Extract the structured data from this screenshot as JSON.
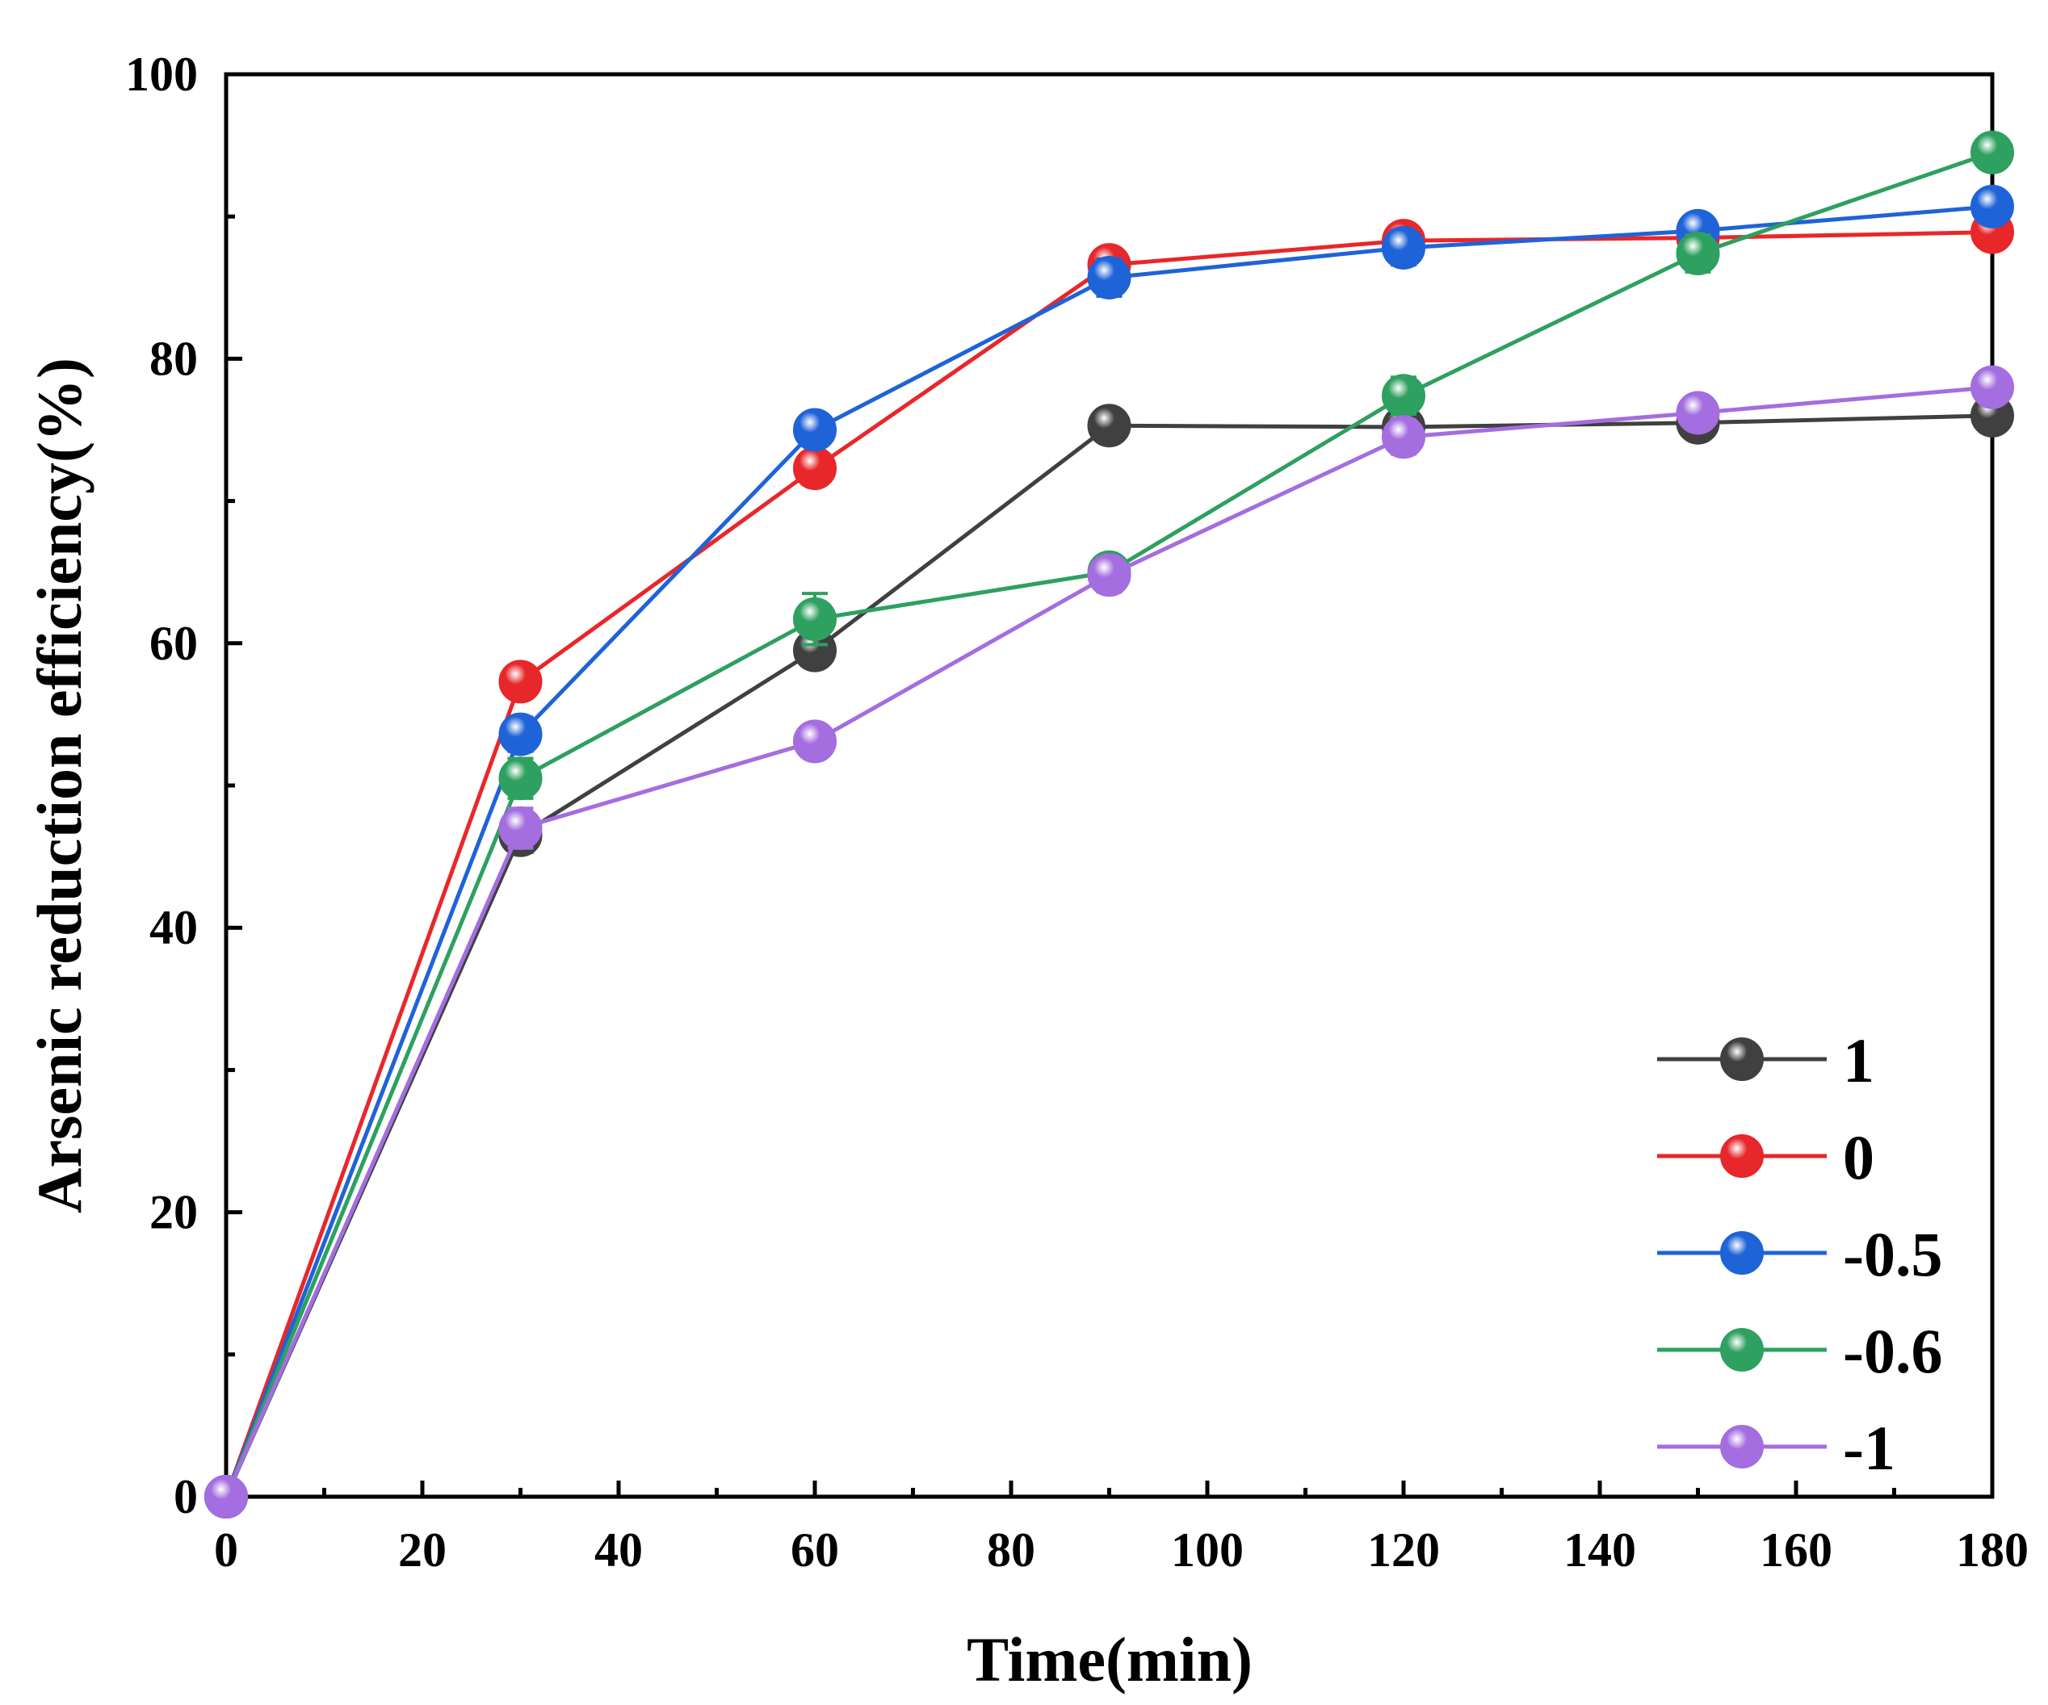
{
  "chart_data": {
    "type": "line",
    "title": "",
    "xlabel": "Time(min)",
    "ylabel": "Arsenic reduction efficiency(%)",
    "xlim": [
      0,
      180
    ],
    "ylim": [
      0,
      100
    ],
    "xticks": [
      0,
      20,
      40,
      60,
      80,
      100,
      120,
      140,
      160,
      180
    ],
    "yticks": [
      0,
      20,
      40,
      60,
      80,
      100
    ],
    "grid": false,
    "legend_position": "bottom-right",
    "x": [
      0,
      30,
      60,
      90,
      120,
      150,
      180
    ],
    "series": [
      {
        "name": "1",
        "color": "#404040",
        "values": [
          0,
          46.5,
          59.5,
          75.3,
          75.2,
          75.5,
          76.0
        ],
        "errors": [
          0,
          1.2,
          1.0,
          0.6,
          0.8,
          0.7,
          0.6
        ]
      },
      {
        "name": "0",
        "color": "#e8272a",
        "values": [
          0,
          57.3,
          72.3,
          86.6,
          88.3,
          88.5,
          88.9
        ],
        "errors": [
          0,
          1.0,
          1.0,
          0.8,
          0.8,
          0.9,
          0.6
        ]
      },
      {
        "name": "-0.5",
        "color": "#1f63d8",
        "values": [
          0,
          53.6,
          75.0,
          85.7,
          87.8,
          89.0,
          90.7
        ],
        "errors": [
          0,
          1.2,
          0.8,
          1.3,
          1.2,
          0.8,
          0.6
        ]
      },
      {
        "name": "-0.6",
        "color": "#2ea060",
        "values": [
          0,
          50.5,
          61.7,
          65.0,
          77.4,
          87.4,
          94.5
        ],
        "errors": [
          0,
          1.4,
          1.8,
          1.0,
          1.3,
          1.3,
          0.8
        ]
      },
      {
        "name": "-1",
        "color": "#a46de0",
        "values": [
          0,
          47.0,
          53.1,
          64.8,
          74.5,
          76.2,
          78.0
        ],
        "errors": [
          0,
          1.4,
          1.0,
          1.2,
          1.2,
          0.8,
          0.6
        ]
      }
    ]
  }
}
